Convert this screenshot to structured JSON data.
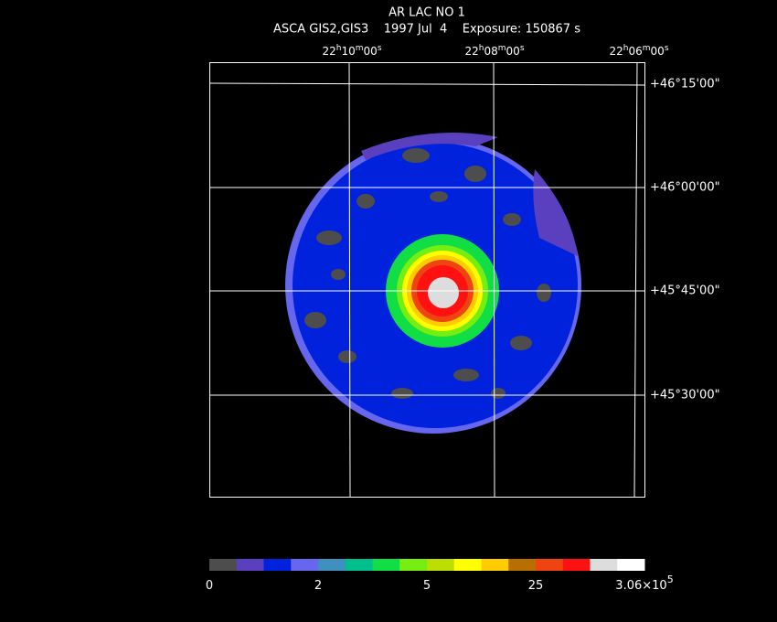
{
  "title": "AR LAC NO 1",
  "subtitle": "ASCA GIS2,GIS3    1997 Jul  4    Exposure: 150867 s",
  "ra_labels": [
    [
      "22",
      "h",
      "10",
      "m",
      "00",
      "s"
    ],
    [
      "22",
      "h",
      "08",
      "m",
      "00",
      "s"
    ],
    [
      "22",
      "h",
      "06",
      "m",
      "00",
      "s"
    ]
  ],
  "dec_labels": [
    "+46°15'00\"",
    "+46°00'00\"",
    "+45°45'00\"",
    "+45°30'00\""
  ],
  "colorbar": {
    "colors": [
      "#4d4d4d",
      "#5a3fbf",
      "#0022dd",
      "#6666ee",
      "#3f8fbf",
      "#00bf8f",
      "#11dd44",
      "#77ee11",
      "#bbdd00",
      "#ffff00",
      "#ffcc00",
      "#b86f00",
      "#ee4411",
      "#ff1111",
      "#dddddd",
      "#ffffff"
    ],
    "labels": [
      "0",
      "2",
      "5",
      "25"
    ],
    "max_label": {
      "mantissa": "3.06×10",
      "exponent": "5"
    }
  }
}
